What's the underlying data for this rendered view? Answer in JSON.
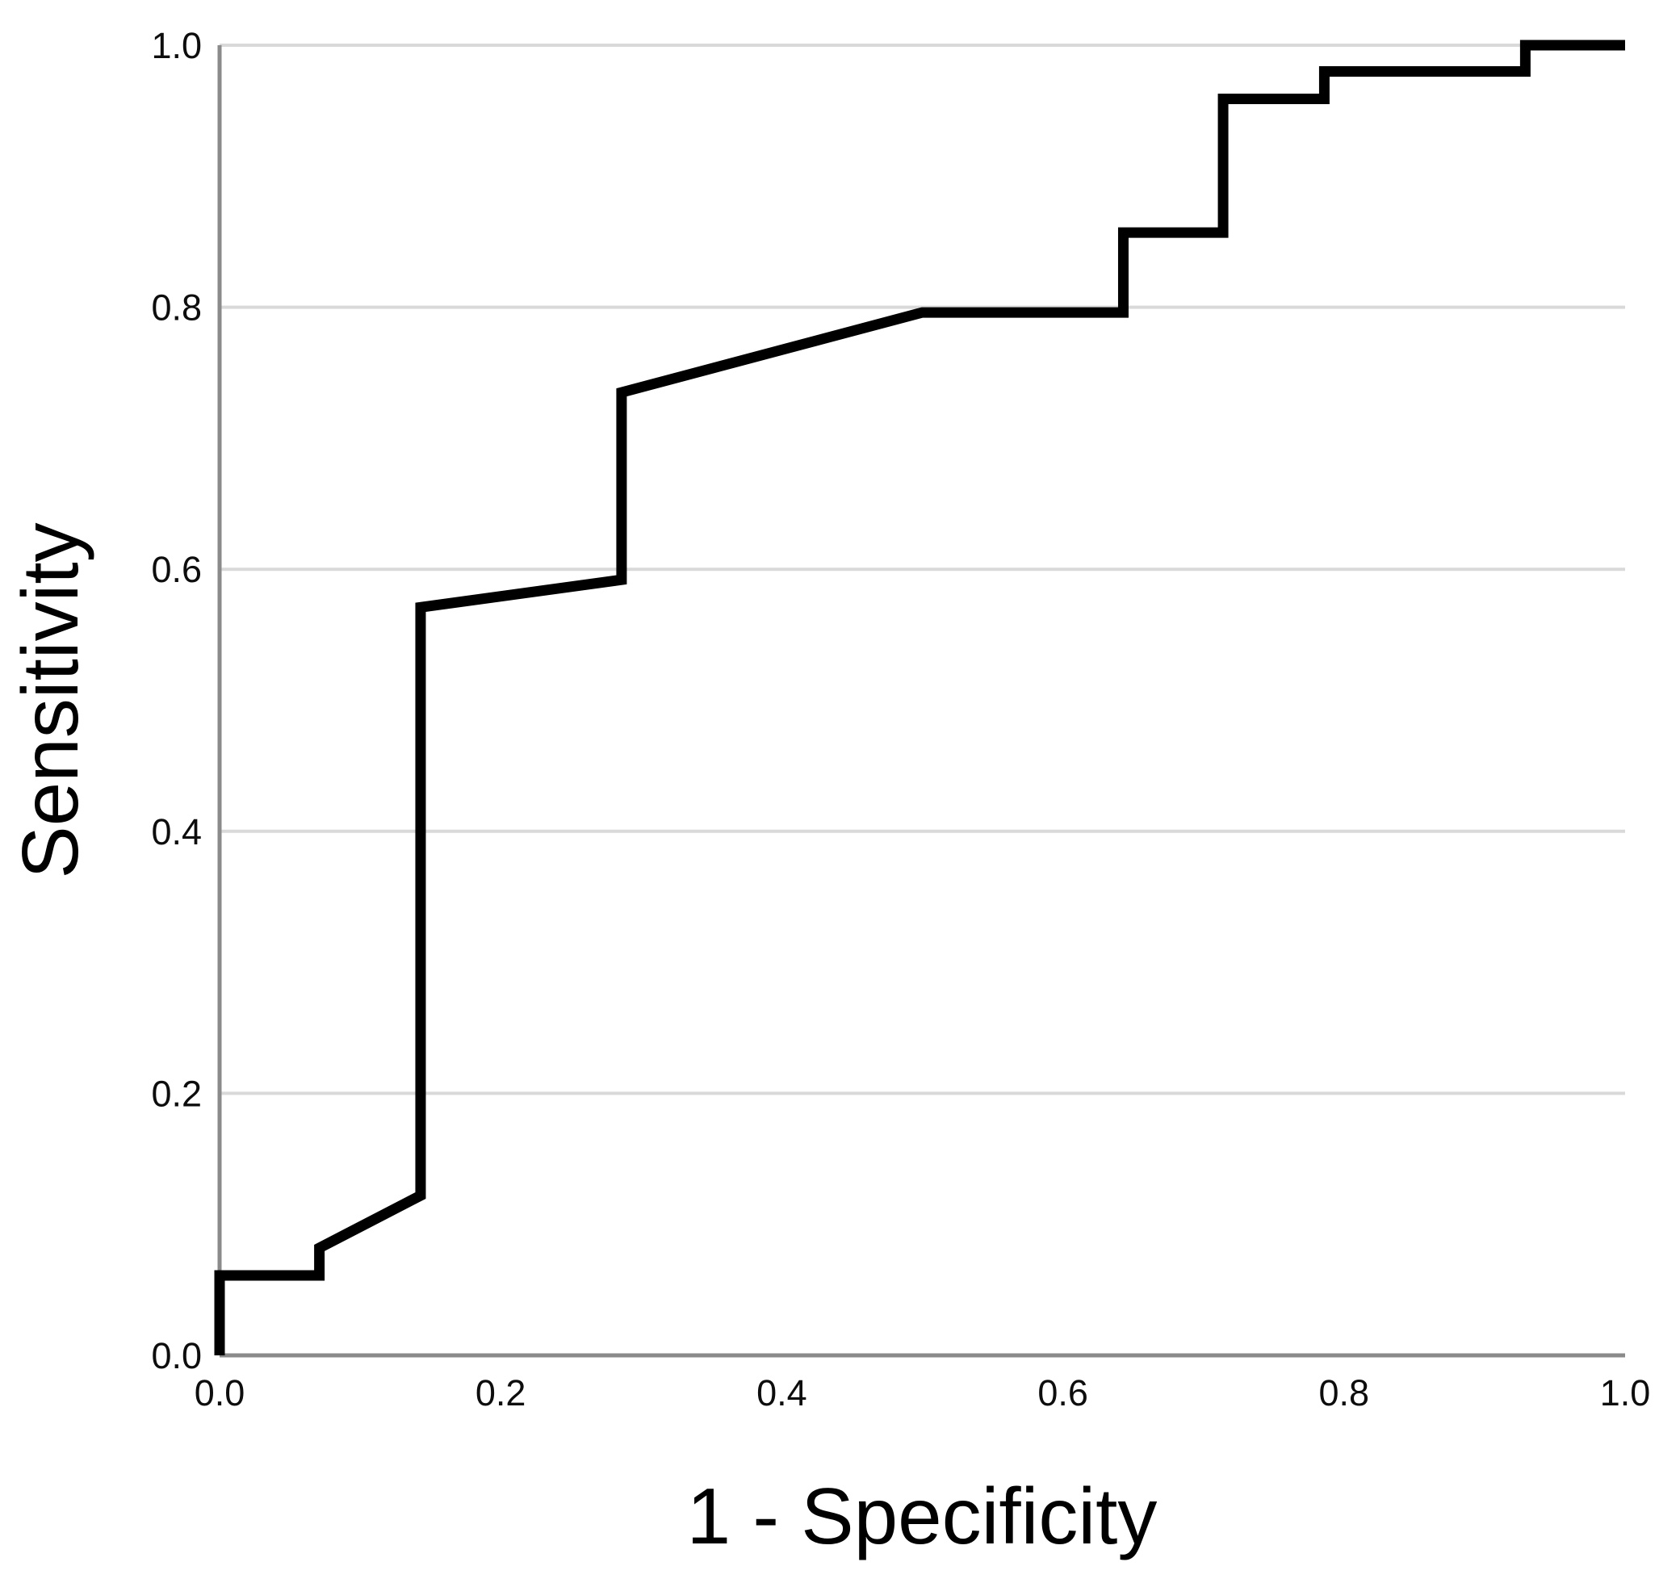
{
  "chart_data": {
    "type": "line",
    "subtype": "roc-curve",
    "title": "",
    "xlabel": "1 - Specificity",
    "ylabel": "Sensitivity",
    "xlim": [
      0.0,
      1.0
    ],
    "ylim": [
      0.0,
      1.0
    ],
    "grid": "horizontal-only",
    "legend": "none",
    "x_ticks": {
      "values": [
        0.0,
        0.2,
        0.4,
        0.6,
        0.8,
        1.0
      ],
      "labels": [
        "0.0",
        "0.2",
        "0.4",
        "0.6",
        "0.8",
        "1.0"
      ]
    },
    "y_ticks": {
      "values": [
        0.0,
        0.2,
        0.4,
        0.6,
        0.8,
        1.0
      ],
      "labels": [
        "0.0",
        "0.2",
        "0.4",
        "0.6",
        "0.8",
        "1.0"
      ]
    },
    "series": [
      {
        "points": [
          [
            0.0,
            0.0
          ],
          [
            0.0,
            0.061
          ],
          [
            0.071,
            0.061
          ],
          [
            0.071,
            0.082
          ],
          [
            0.143,
            0.122
          ],
          [
            0.143,
            0.571
          ],
          [
            0.286,
            0.592
          ],
          [
            0.286,
            0.735
          ],
          [
            0.5,
            0.796
          ],
          [
            0.643,
            0.796
          ],
          [
            0.643,
            0.857
          ],
          [
            0.714,
            0.857
          ],
          [
            0.714,
            0.959
          ],
          [
            0.786,
            0.959
          ],
          [
            0.786,
            0.98
          ],
          [
            0.929,
            0.98
          ],
          [
            0.929,
            1.0
          ],
          [
            1.0,
            1.0
          ]
        ]
      }
    ],
    "colors": {
      "curve": "#000000",
      "axis": "#8a8a8a",
      "grid": "#d9d9d9",
      "text": "#000000",
      "background": "#ffffff"
    }
  }
}
